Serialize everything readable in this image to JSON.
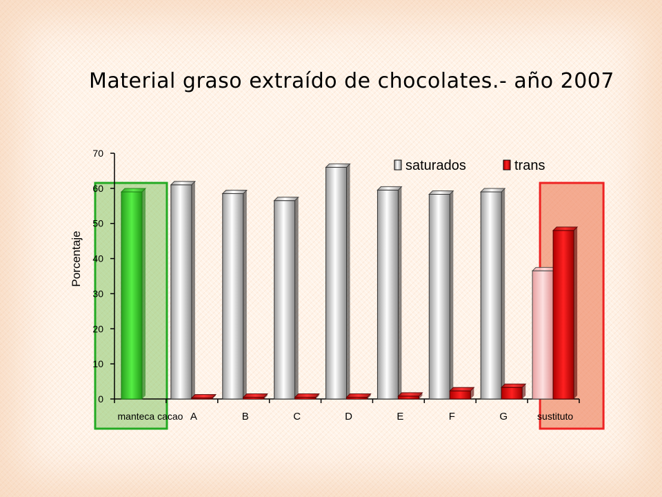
{
  "chart_data": {
    "type": "bar",
    "title": "Material graso extraído de chocolates.- año 2007",
    "ylabel": "Porcentaje",
    "xlabel": "",
    "ylim": [
      0,
      70
    ],
    "yticks": [
      0,
      10,
      20,
      30,
      40,
      50,
      60,
      70
    ],
    "categories": [
      "manteca cacao",
      "A",
      "B",
      "C",
      "D",
      "E",
      "F",
      "G",
      "sustituto"
    ],
    "series": [
      {
        "name": "saturados",
        "values": [
          59,
          61,
          58.5,
          56.5,
          66,
          59.5,
          58.3,
          59,
          36.5
        ]
      },
      {
        "name": "trans",
        "values": [
          null,
          0.3,
          0.5,
          0.5,
          0.5,
          0.8,
          2.3,
          3.3,
          48
        ]
      }
    ],
    "legend_position": "top-right",
    "grid": false,
    "colors": {
      "saturados": "#e6e6e6",
      "trans": "#ee0000",
      "highlight_green": "#44dd33",
      "highlight_sustituto_saturados": "#f7b8b8",
      "green_box_border": "#22aa22",
      "red_box_border": "#ee2222"
    }
  }
}
